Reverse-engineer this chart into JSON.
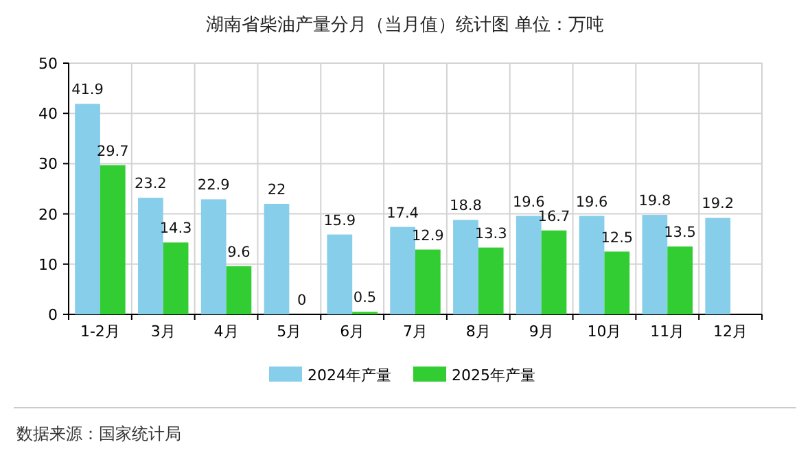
{
  "chart_data": {
    "type": "bar",
    "title": "湖南省柴油产量分月（当月值）统计图 单位：万吨",
    "categories": [
      "1-2月",
      "3月",
      "4月",
      "5月",
      "6月",
      "7月",
      "8月",
      "9月",
      "10月",
      "11月",
      "12月"
    ],
    "series": [
      {
        "name": "2024年产量",
        "color": "#87ceeb",
        "values": [
          41.9,
          23.2,
          22.9,
          22,
          15.9,
          17.4,
          18.8,
          19.6,
          19.6,
          19.8,
          19.2
        ]
      },
      {
        "name": "2025年产量",
        "color": "#32cd32",
        "values": [
          29.7,
          14.3,
          9.6,
          0,
          0.5,
          12.9,
          13.3,
          16.7,
          12.5,
          13.5,
          null
        ]
      }
    ],
    "ylim": [
      0,
      50
    ],
    "yticks": [
      0,
      10,
      20,
      30,
      40,
      50
    ],
    "grid": true,
    "legend": "bottom",
    "data_labels": true,
    "annotations": [
      "数据来源：国家统计局"
    ]
  }
}
